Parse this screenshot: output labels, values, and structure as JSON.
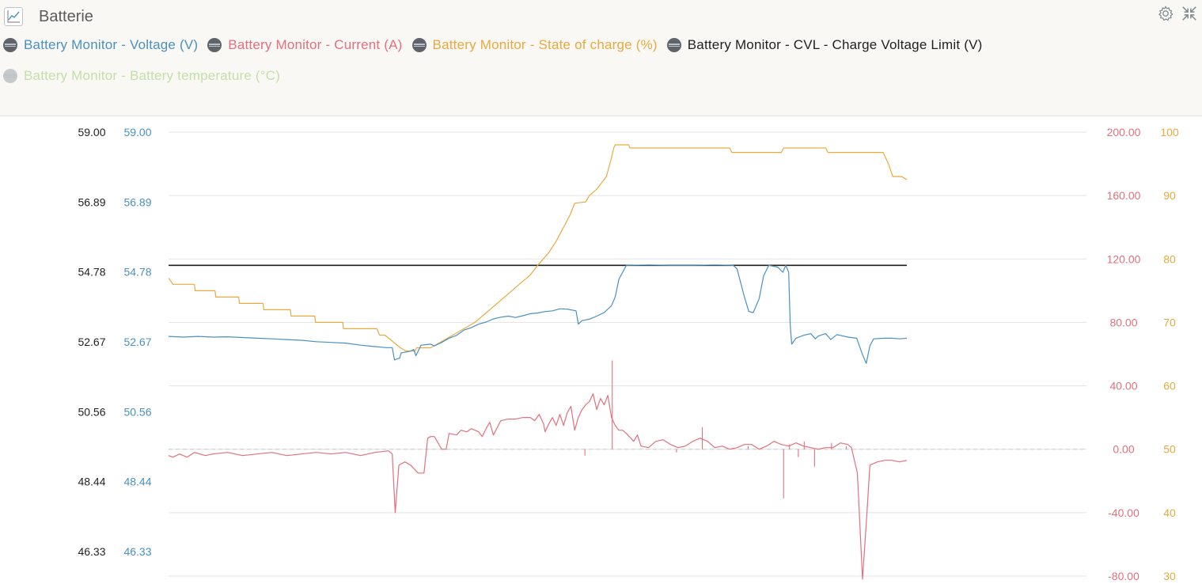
{
  "widget": {
    "title": "Batterie",
    "icons": [
      "chart-icon",
      "gear-icon",
      "collapse-icon"
    ]
  },
  "legend": [
    {
      "name": "Battery Monitor - Voltage (V)",
      "color": "#4a90c2",
      "dim": false
    },
    {
      "name": "Battery Monitor - Current (A)",
      "color": "#e2707e",
      "dim": false
    },
    {
      "name": "Battery Monitor - State of charge (%)",
      "color": "#e9a93f",
      "dim": false
    },
    {
      "name": "Battery Monitor - CVL - Charge Voltage Limit (V)",
      "color": "#1f1f1f",
      "dim": false
    },
    {
      "name": "Battery Monitor - Battery temperature (°C)",
      "color": "#8ec95d",
      "dim": true
    }
  ],
  "chart_data": {
    "type": "line",
    "grid": true,
    "axes": {
      "left_outer": {
        "color": "#222222",
        "ticks": [
          "59.00",
          "56.89",
          "54.78",
          "52.67",
          "50.56",
          "48.44",
          "46.33"
        ],
        "range": [
          46.33,
          59.0
        ]
      },
      "left_inner": {
        "color": "#4a90c2",
        "ticks": [
          "59.00",
          "56.89",
          "54.78",
          "52.67",
          "50.56",
          "48.44",
          "46.33"
        ],
        "range": [
          46.33,
          59.0
        ]
      },
      "right_inner": {
        "color": "#e2707e",
        "ticks": [
          "200.00",
          "160.00",
          "120.00",
          "80.00",
          "40.00",
          "0.00",
          "-40.00",
          "-80.00"
        ],
        "range": [
          -80,
          200
        ]
      },
      "right_outer": {
        "color": "#e9a93f",
        "ticks": [
          "100",
          "90",
          "80",
          "70",
          "60",
          "50",
          "40",
          "30"
        ],
        "range": [
          30,
          100
        ]
      }
    },
    "x": {
      "range": [
        0,
        100
      ]
    },
    "zero_line": {
      "axis": "right_inner",
      "value": 0
    },
    "series": [
      {
        "name": "Battery Monitor - CVL - Charge Voltage Limit (V)",
        "axis": "left_outer",
        "color": "#1f1f1f",
        "points": [
          [
            0,
            55.2
          ],
          [
            100,
            55.2
          ]
        ]
      },
      {
        "name": "Battery Monitor - State of charge (%)",
        "axis": "right_outer",
        "color": "#e9a93f",
        "points": [
          [
            0,
            77
          ],
          [
            0.6,
            76
          ],
          [
            3.5,
            76
          ],
          [
            3.6,
            75
          ],
          [
            6.3,
            75
          ],
          [
            6.4,
            74
          ],
          [
            9.5,
            74
          ],
          [
            9.6,
            73
          ],
          [
            12.8,
            73
          ],
          [
            12.9,
            72
          ],
          [
            16.5,
            72
          ],
          [
            16.6,
            71
          ],
          [
            19.8,
            71
          ],
          [
            19.9,
            70
          ],
          [
            23.6,
            70
          ],
          [
            23.7,
            69
          ],
          [
            28.2,
            69
          ],
          [
            28.6,
            68
          ],
          [
            29.3,
            68
          ],
          [
            31.4,
            66
          ],
          [
            32.1,
            65.5
          ],
          [
            33.4,
            65.5
          ],
          [
            33.6,
            66
          ],
          [
            35.5,
            66
          ],
          [
            37.0,
            67
          ],
          [
            38.5,
            68
          ],
          [
            40.0,
            69
          ],
          [
            41.5,
            70
          ],
          [
            43.0,
            71.5
          ],
          [
            44.5,
            73
          ],
          [
            46.0,
            74.5
          ],
          [
            47.5,
            76
          ],
          [
            49.0,
            77.5
          ],
          [
            50.0,
            79
          ],
          [
            51.5,
            81
          ],
          [
            52.6,
            83
          ],
          [
            53.5,
            85
          ],
          [
            54.4,
            87
          ],
          [
            55.0,
            88.8
          ],
          [
            56.5,
            89
          ],
          [
            57.0,
            90
          ],
          [
            58.0,
            91
          ],
          [
            59.3,
            93
          ],
          [
            60.0,
            96
          ],
          [
            60.3,
            97.5
          ],
          [
            60.5,
            98
          ],
          [
            62.3,
            98
          ],
          [
            62.5,
            97.5
          ],
          [
            64.0,
            97.5
          ],
          [
            76.0,
            97.5
          ],
          [
            76.3,
            96.8
          ],
          [
            83.0,
            96.8
          ],
          [
            83.3,
            97.5
          ],
          [
            89.0,
            97.5
          ],
          [
            89.3,
            96.8
          ],
          [
            96.8,
            96.8
          ],
          [
            97.5,
            95
          ],
          [
            98.1,
            93
          ],
          [
            99.3,
            93
          ],
          [
            100,
            92.5
          ]
        ]
      },
      {
        "name": "Battery Monitor - Voltage (V)",
        "axis": "left_inner",
        "color": "#4a90c2",
        "points": [
          [
            0,
            53.17
          ],
          [
            2,
            53.15
          ],
          [
            4,
            53.17
          ],
          [
            6,
            53.15
          ],
          [
            8,
            53.16
          ],
          [
            10,
            53.14
          ],
          [
            12,
            53.12
          ],
          [
            14,
            53.1
          ],
          [
            16,
            53.08
          ],
          [
            18,
            53.06
          ],
          [
            20,
            53.02
          ],
          [
            22,
            53.0
          ],
          [
            24,
            52.98
          ],
          [
            26,
            52.92
          ],
          [
            28,
            52.88
          ],
          [
            29.5,
            52.85
          ],
          [
            30.3,
            52.85
          ],
          [
            30.6,
            52.5
          ],
          [
            31.3,
            52.55
          ],
          [
            31.5,
            52.7
          ],
          [
            32.8,
            52.75
          ],
          [
            33.2,
            52.8
          ],
          [
            33.5,
            52.62
          ],
          [
            34.2,
            52.92
          ],
          [
            35.5,
            52.95
          ],
          [
            36,
            52.9
          ],
          [
            37,
            53.0
          ],
          [
            38,
            53.12
          ],
          [
            39,
            53.2
          ],
          [
            40,
            53.35
          ],
          [
            41,
            53.42
          ],
          [
            42,
            53.52
          ],
          [
            43,
            53.58
          ],
          [
            44,
            53.67
          ],
          [
            45,
            53.72
          ],
          [
            46,
            53.75
          ],
          [
            47,
            53.71
          ],
          [
            48,
            53.76
          ],
          [
            49,
            53.82
          ],
          [
            50,
            53.84
          ],
          [
            51,
            53.88
          ],
          [
            52,
            53.9
          ],
          [
            53,
            53.96
          ],
          [
            54,
            53.95
          ],
          [
            55.2,
            53.9
          ],
          [
            55.5,
            53.52
          ],
          [
            56,
            53.62
          ],
          [
            57,
            53.66
          ],
          [
            58,
            53.75
          ],
          [
            59,
            53.85
          ],
          [
            60,
            54.05
          ],
          [
            60.5,
            54.3
          ],
          [
            61,
            54.8
          ],
          [
            62,
            55.2
          ],
          [
            65,
            55.21
          ],
          [
            68,
            55.2
          ],
          [
            71,
            55.2
          ],
          [
            74,
            55.21
          ],
          [
            76.5,
            55.2
          ],
          [
            77,
            55.1
          ],
          [
            78,
            54.3
          ],
          [
            78.6,
            53.88
          ],
          [
            79.2,
            53.85
          ],
          [
            80,
            54.25
          ],
          [
            80.6,
            54.9
          ],
          [
            81.3,
            55.2
          ],
          [
            82.5,
            55.15
          ],
          [
            83.2,
            55.0
          ],
          [
            83.6,
            55.2
          ],
          [
            84.0,
            55.0
          ],
          [
            84.2,
            53.5
          ],
          [
            84.4,
            52.95
          ],
          [
            85,
            53.12
          ],
          [
            86,
            53.2
          ],
          [
            87,
            53.25
          ],
          [
            87.6,
            53.1
          ],
          [
            88,
            53.18
          ],
          [
            89,
            53.25
          ],
          [
            89.7,
            53.08
          ],
          [
            90.5,
            53.22
          ],
          [
            91,
            53.2
          ],
          [
            92,
            53.15
          ],
          [
            93.2,
            53.12
          ],
          [
            94,
            52.65
          ],
          [
            94.5,
            52.4
          ],
          [
            95,
            52.9
          ],
          [
            95.5,
            53.1
          ],
          [
            97,
            53.12
          ],
          [
            98,
            53.12
          ],
          [
            99,
            53.1
          ],
          [
            100,
            53.12
          ]
        ]
      },
      {
        "name": "Battery Monitor - Current (A)",
        "axis": "right_inner",
        "color": "#e2707e",
        "points": [
          [
            0,
            -4
          ],
          [
            0.6,
            -5
          ],
          [
            1.5,
            -3
          ],
          [
            2.5,
            -5
          ],
          [
            3.5,
            -2
          ],
          [
            5,
            -4
          ],
          [
            6,
            -3
          ],
          [
            8,
            -2
          ],
          [
            10,
            -4
          ],
          [
            12,
            -3
          ],
          [
            14,
            -2
          ],
          [
            16,
            -4
          ],
          [
            18,
            -3
          ],
          [
            20,
            -2
          ],
          [
            22,
            -3
          ],
          [
            24,
            -2
          ],
          [
            26,
            -4
          ],
          [
            28,
            -2
          ],
          [
            29.8,
            -1
          ],
          [
            30.3,
            -3
          ],
          [
            30.7,
            -40
          ],
          [
            31.2,
            -10
          ],
          [
            32,
            -8
          ],
          [
            32.8,
            -10
          ],
          [
            33.8,
            -15
          ],
          [
            34.6,
            -15
          ],
          [
            35.1,
            7
          ],
          [
            35.5,
            8
          ],
          [
            36,
            8
          ],
          [
            37,
            0
          ],
          [
            37.6,
            0
          ],
          [
            38,
            10
          ],
          [
            39,
            9
          ],
          [
            39.6,
            12
          ],
          [
            40.4,
            11
          ],
          [
            41,
            13
          ],
          [
            42,
            11
          ],
          [
            42.5,
            8
          ],
          [
            43,
            13
          ],
          [
            43.5,
            17
          ],
          [
            44,
            9
          ],
          [
            45,
            18
          ],
          [
            46,
            19
          ],
          [
            47,
            19
          ],
          [
            48,
            20
          ],
          [
            49,
            20
          ],
          [
            49.6,
            18
          ],
          [
            50.2,
            22
          ],
          [
            50.8,
            16
          ],
          [
            51,
            11
          ],
          [
            51.5,
            16
          ],
          [
            52,
            20
          ],
          [
            52.5,
            15
          ],
          [
            53,
            22
          ],
          [
            53.5,
            15
          ],
          [
            54,
            23
          ],
          [
            54.5,
            27
          ],
          [
            55,
            12
          ],
          [
            55.5,
            20
          ],
          [
            56,
            25
          ],
          [
            56.5,
            28
          ],
          [
            57,
            30
          ],
          [
            57.5,
            35
          ],
          [
            58,
            25
          ],
          [
            58.5,
            32
          ],
          [
            59,
            28
          ],
          [
            59.5,
            34
          ],
          [
            60,
            20
          ],
          [
            60.5,
            15
          ],
          [
            61,
            12
          ],
          [
            61.5,
            12
          ],
          [
            62,
            10
          ],
          [
            63,
            5
          ],
          [
            63.5,
            9
          ],
          [
            64,
            2
          ],
          [
            65,
            1
          ],
          [
            66,
            5
          ],
          [
            67,
            6
          ],
          [
            68,
            3
          ],
          [
            69,
            1
          ],
          [
            70,
            2
          ],
          [
            71,
            5
          ],
          [
            72,
            7
          ],
          [
            73,
            5
          ],
          [
            74,
            1
          ],
          [
            75,
            2
          ],
          [
            76,
            0
          ],
          [
            77,
            1
          ],
          [
            78,
            3
          ],
          [
            79,
            3
          ],
          [
            80,
            0
          ],
          [
            81,
            2
          ],
          [
            82,
            5
          ],
          [
            83,
            3
          ],
          [
            84,
            2
          ],
          [
            85,
            4
          ],
          [
            86,
            2
          ],
          [
            87,
            1
          ],
          [
            88,
            0
          ],
          [
            89,
            1
          ],
          [
            90,
            1
          ],
          [
            91,
            4
          ],
          [
            92,
            3
          ],
          [
            92.5,
            1
          ],
          [
            93.3,
            -15
          ],
          [
            94.0,
            -82
          ],
          [
            94.6,
            -40
          ],
          [
            95,
            -10
          ],
          [
            96,
            -8
          ],
          [
            97,
            -7
          ],
          [
            98,
            -7
          ],
          [
            99,
            -8
          ],
          [
            100,
            -7
          ]
        ],
        "spikes": [
          [
            56.4,
            -4
          ],
          [
            60.1,
            56
          ],
          [
            68.8,
            -2
          ],
          [
            72.3,
            14
          ],
          [
            78.5,
            2
          ],
          [
            83.3,
            -31
          ],
          [
            84.1,
            3
          ],
          [
            85.3,
            -5
          ],
          [
            86.1,
            5
          ],
          [
            87.5,
            -11
          ],
          [
            89.8,
            4
          ],
          [
            91.8,
            2
          ]
        ]
      }
    ]
  }
}
